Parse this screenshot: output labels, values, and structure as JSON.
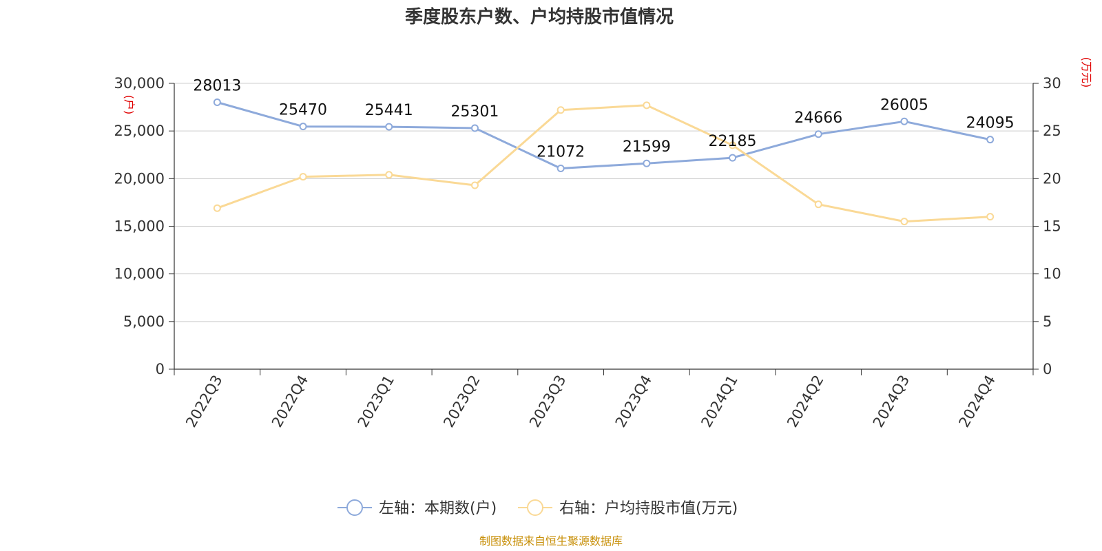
{
  "chart_data": {
    "type": "line",
    "title": "季度股东户数、户均持股市值情况",
    "categories": [
      "2022Q3",
      "2022Q4",
      "2023Q1",
      "2023Q2",
      "2023Q3",
      "2023Q4",
      "2024Q1",
      "2024Q2",
      "2024Q3",
      "2024Q4"
    ],
    "y_left": {
      "unit_label": "(户)",
      "ylim": [
        0,
        30000
      ],
      "ticks": [
        0,
        5000,
        10000,
        15000,
        20000,
        25000,
        30000
      ],
      "tick_labels": [
        "0",
        "5,000",
        "10,000",
        "15,000",
        "20,000",
        "25,000",
        "30,000"
      ]
    },
    "y_right": {
      "unit_label": "(万元)",
      "ylim": [
        0,
        30
      ],
      "ticks": [
        0,
        5,
        10,
        15,
        20,
        25,
        30
      ],
      "tick_labels": [
        "0",
        "5",
        "10",
        "15",
        "20",
        "25",
        "30"
      ]
    },
    "grid": true,
    "legend_position": "bottom-center",
    "series": [
      {
        "name": "左轴：本期数(户)",
        "axis": "left",
        "color": "#8eaadb",
        "show_labels": true,
        "values": [
          28013,
          25470,
          25441,
          25301,
          21072,
          21599,
          22185,
          24666,
          26005,
          24095
        ]
      },
      {
        "name": "右轴：户均持股市值(万元)",
        "axis": "right",
        "color": "#fad996",
        "show_labels": false,
        "values": [
          16.9,
          20.2,
          20.4,
          19.3,
          27.2,
          27.7,
          23.5,
          17.3,
          15.5,
          16.0
        ]
      }
    ]
  },
  "source_text": "制图数据来自恒生聚源数据库"
}
